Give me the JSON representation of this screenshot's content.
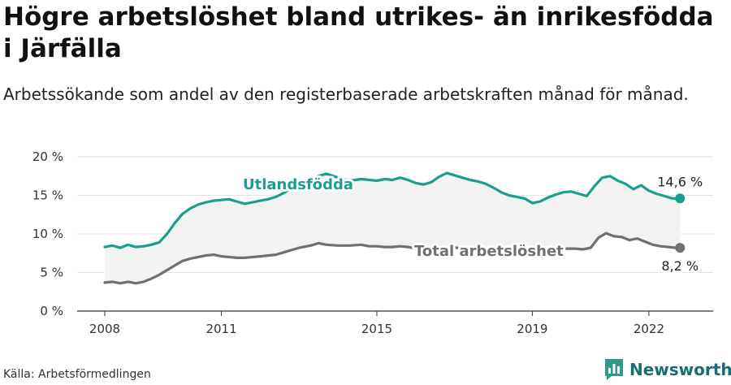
{
  "header": {
    "title": "Högre arbetslöshet bland utrikes- än inrikesfödda i Järfälla",
    "subtitle": "Arbetssökande som andel av den registerbaserade arbetskraften månad för månad."
  },
  "footer": {
    "source": "Källa: Arbetsförmedlingen",
    "brand": "Newsworthy"
  },
  "colors": {
    "foreign": "#1a9e8f",
    "total": "#707070",
    "band": "#f2f2f2",
    "grid": "#e3e3e3",
    "brand": "#166d74"
  },
  "chart_data": {
    "type": "line",
    "title": "Högre arbetslöshet bland utrikes- än inrikesfödda i Järfälla",
    "xlabel": "",
    "ylabel": "",
    "xlim": [
      2008,
      2022.9
    ],
    "ylim": [
      0,
      20
    ],
    "x_ticks": [
      2008,
      2011,
      2015,
      2019,
      2022
    ],
    "x_tick_labels": [
      "2008",
      "2011",
      "2015",
      "2019",
      "2022"
    ],
    "y_ticks": [
      0,
      5,
      10,
      15,
      20
    ],
    "y_tick_labels": [
      "0 %",
      "5 %",
      "10 %",
      "15 %",
      "20 %"
    ],
    "grid": true,
    "series": [
      {
        "name": "Utlandsfödda",
        "end_label": "14,6 %",
        "points": [
          [
            2008.0,
            8.3
          ],
          [
            2008.2,
            8.5
          ],
          [
            2008.4,
            8.2
          ],
          [
            2008.6,
            8.6
          ],
          [
            2008.8,
            8.3
          ],
          [
            2009.0,
            8.4
          ],
          [
            2009.2,
            8.6
          ],
          [
            2009.4,
            8.9
          ],
          [
            2009.6,
            10.0
          ],
          [
            2009.8,
            11.4
          ],
          [
            2010.0,
            12.6
          ],
          [
            2010.2,
            13.3
          ],
          [
            2010.4,
            13.8
          ],
          [
            2010.6,
            14.1
          ],
          [
            2010.8,
            14.3
          ],
          [
            2011.0,
            14.4
          ],
          [
            2011.2,
            14.5
          ],
          [
            2011.4,
            14.2
          ],
          [
            2011.6,
            13.9
          ],
          [
            2011.8,
            14.1
          ],
          [
            2012.0,
            14.3
          ],
          [
            2012.2,
            14.5
          ],
          [
            2012.4,
            14.8
          ],
          [
            2012.6,
            15.3
          ],
          [
            2012.8,
            15.9
          ],
          [
            2013.0,
            16.4
          ],
          [
            2013.3,
            16.9
          ],
          [
            2013.5,
            17.5
          ],
          [
            2013.7,
            17.8
          ],
          [
            2014.0,
            17.3
          ],
          [
            2014.3,
            16.9
          ],
          [
            2014.6,
            17.1
          ],
          [
            2014.8,
            17.0
          ],
          [
            2015.0,
            16.9
          ],
          [
            2015.2,
            17.1
          ],
          [
            2015.4,
            17.0
          ],
          [
            2015.6,
            17.3
          ],
          [
            2015.8,
            17.0
          ],
          [
            2016.0,
            16.6
          ],
          [
            2016.2,
            16.4
          ],
          [
            2016.4,
            16.7
          ],
          [
            2016.6,
            17.4
          ],
          [
            2016.8,
            17.9
          ],
          [
            2017.0,
            17.6
          ],
          [
            2017.2,
            17.3
          ],
          [
            2017.4,
            17.0
          ],
          [
            2017.6,
            16.8
          ],
          [
            2017.8,
            16.5
          ],
          [
            2018.0,
            16.0
          ],
          [
            2018.2,
            15.4
          ],
          [
            2018.4,
            15.0
          ],
          [
            2018.6,
            14.8
          ],
          [
            2018.8,
            14.6
          ],
          [
            2019.0,
            14.0
          ],
          [
            2019.2,
            14.2
          ],
          [
            2019.4,
            14.7
          ],
          [
            2019.6,
            15.1
          ],
          [
            2019.8,
            15.4
          ],
          [
            2020.0,
            15.5
          ],
          [
            2020.2,
            15.2
          ],
          [
            2020.4,
            14.9
          ],
          [
            2020.6,
            16.2
          ],
          [
            2020.8,
            17.3
          ],
          [
            2021.0,
            17.5
          ],
          [
            2021.2,
            16.9
          ],
          [
            2021.4,
            16.5
          ],
          [
            2021.6,
            15.8
          ],
          [
            2021.8,
            16.3
          ],
          [
            2022.0,
            15.6
          ],
          [
            2022.2,
            15.2
          ],
          [
            2022.4,
            14.9
          ],
          [
            2022.6,
            14.6
          ],
          [
            2022.8,
            14.6
          ]
        ]
      },
      {
        "name": "Total arbetslöshet",
        "end_label": "8,2 %",
        "points": [
          [
            2008.0,
            3.7
          ],
          [
            2008.2,
            3.8
          ],
          [
            2008.4,
            3.6
          ],
          [
            2008.6,
            3.8
          ],
          [
            2008.8,
            3.6
          ],
          [
            2009.0,
            3.8
          ],
          [
            2009.2,
            4.2
          ],
          [
            2009.4,
            4.7
          ],
          [
            2009.6,
            5.3
          ],
          [
            2009.8,
            5.9
          ],
          [
            2010.0,
            6.5
          ],
          [
            2010.2,
            6.8
          ],
          [
            2010.4,
            7.0
          ],
          [
            2010.6,
            7.2
          ],
          [
            2010.8,
            7.3
          ],
          [
            2011.0,
            7.1
          ],
          [
            2011.2,
            7.0
          ],
          [
            2011.4,
            6.9
          ],
          [
            2011.6,
            6.9
          ],
          [
            2011.8,
            7.0
          ],
          [
            2012.0,
            7.1
          ],
          [
            2012.2,
            7.2
          ],
          [
            2012.4,
            7.3
          ],
          [
            2012.6,
            7.6
          ],
          [
            2012.8,
            7.9
          ],
          [
            2013.0,
            8.2
          ],
          [
            2013.3,
            8.5
          ],
          [
            2013.5,
            8.8
          ],
          [
            2013.7,
            8.6
          ],
          [
            2014.0,
            8.5
          ],
          [
            2014.3,
            8.5
          ],
          [
            2014.6,
            8.6
          ],
          [
            2014.8,
            8.4
          ],
          [
            2015.0,
            8.4
          ],
          [
            2015.2,
            8.3
          ],
          [
            2015.4,
            8.3
          ],
          [
            2015.6,
            8.4
          ],
          [
            2015.8,
            8.3
          ],
          [
            2016.0,
            8.1
          ],
          [
            2016.3,
            8.0
          ],
          [
            2016.6,
            8.2
          ],
          [
            2016.9,
            8.3
          ],
          [
            2017.2,
            8.1
          ],
          [
            2017.5,
            8.0
          ],
          [
            2017.8,
            7.9
          ],
          [
            2018.1,
            7.8
          ],
          [
            2018.4,
            7.8
          ],
          [
            2018.7,
            7.7
          ],
          [
            2019.0,
            7.6
          ],
          [
            2019.3,
            7.7
          ],
          [
            2019.6,
            8.0
          ],
          [
            2019.9,
            8.1
          ],
          [
            2020.1,
            8.1
          ],
          [
            2020.3,
            8.0
          ],
          [
            2020.5,
            8.2
          ],
          [
            2020.7,
            9.5
          ],
          [
            2020.9,
            10.1
          ],
          [
            2021.1,
            9.7
          ],
          [
            2021.3,
            9.6
          ],
          [
            2021.5,
            9.2
          ],
          [
            2021.7,
            9.4
          ],
          [
            2021.9,
            9.0
          ],
          [
            2022.1,
            8.6
          ],
          [
            2022.3,
            8.4
          ],
          [
            2022.5,
            8.3
          ],
          [
            2022.7,
            8.2
          ],
          [
            2022.8,
            8.2
          ]
        ]
      }
    ]
  }
}
